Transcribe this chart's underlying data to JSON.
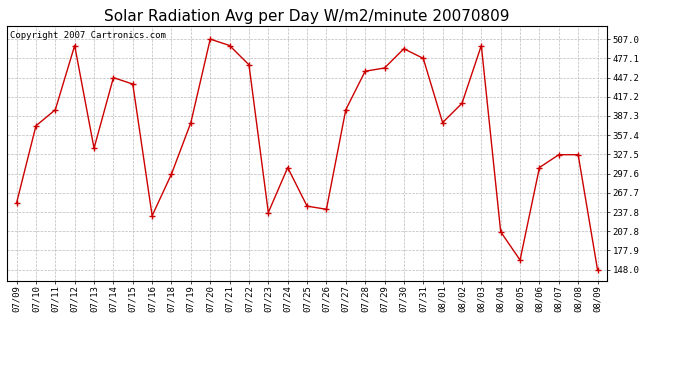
{
  "title": "Solar Radiation Avg per Day W/m2/minute 20070809",
  "copyright": "Copyright 2007 Cartronics.com",
  "labels": [
    "07/09",
    "07/10",
    "07/11",
    "07/12",
    "07/13",
    "07/14",
    "07/15",
    "07/16",
    "07/18",
    "07/19",
    "07/20",
    "07/21",
    "07/22",
    "07/23",
    "07/24",
    "07/25",
    "07/26",
    "07/27",
    "07/28",
    "07/29",
    "07/30",
    "07/31",
    "08/01",
    "08/02",
    "08/03",
    "08/04",
    "08/05",
    "08/06",
    "08/07",
    "08/08",
    "08/09"
  ],
  "values": [
    252.0,
    372.0,
    397.0,
    497.0,
    337.0,
    447.0,
    437.0,
    232.0,
    297.0,
    377.0,
    507.0,
    497.0,
    467.0,
    237.0,
    307.0,
    247.0,
    242.0,
    397.0,
    457.0,
    462.0,
    492.0,
    477.0,
    377.0,
    407.0,
    497.0,
    207.0,
    163.0,
    307.0,
    327.0,
    327.0,
    148.0
  ],
  "line_color": "#cc0000",
  "marker_color": "#cc0000",
  "bg_color": "#ffffff",
  "grid_color": "#aaaaaa",
  "ytick_labels": [
    "148.0",
    "177.9",
    "207.8",
    "237.8",
    "267.7",
    "297.6",
    "327.5",
    "357.4",
    "387.3",
    "417.2",
    "447.2",
    "477.1",
    "507.0"
  ],
  "ytick_values": [
    148.0,
    177.9,
    207.8,
    237.8,
    267.7,
    297.6,
    327.5,
    357.4,
    387.3,
    417.2,
    447.2,
    477.1,
    507.0
  ],
  "ymin": 130.0,
  "ymax": 527.0,
  "title_fontsize": 11,
  "tick_fontsize": 6.5,
  "copyright_fontsize": 6.5
}
